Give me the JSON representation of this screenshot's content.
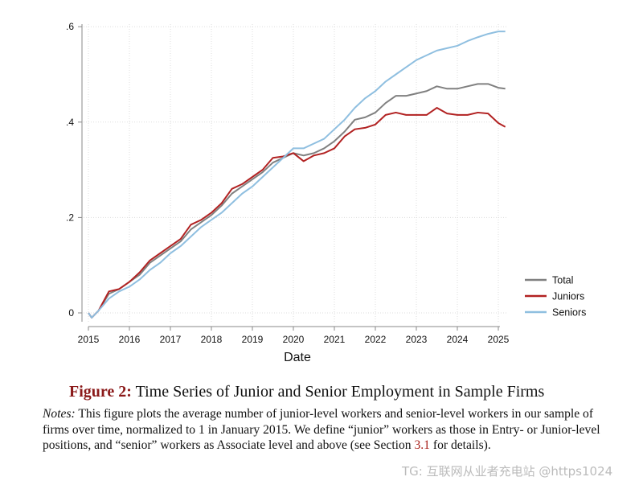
{
  "chart_data": {
    "type": "line",
    "title": "",
    "xlabel": "Date",
    "ylabel": "",
    "xlim": [
      2015,
      2025.25
    ],
    "ylim": [
      -0.03,
      0.6
    ],
    "grid": true,
    "legend_placement": "right",
    "xticks": [
      "2015",
      "2016",
      "2017",
      "2018",
      "2019",
      "2020",
      "2021",
      "2022",
      "2023",
      "2024",
      "2025"
    ],
    "yticks": [
      {
        "value": 0,
        "label": "0"
      },
      {
        "value": 0.2,
        "label": ".2"
      },
      {
        "value": 0.4,
        "label": ".4"
      },
      {
        "value": 0.6,
        "label": ".6"
      }
    ],
    "x": [
      2015,
      2015.08,
      2015.25,
      2015.5,
      2015.75,
      2016,
      2016.25,
      2016.5,
      2016.75,
      2017,
      2017.25,
      2017.5,
      2017.75,
      2018,
      2018.25,
      2018.5,
      2018.75,
      2019,
      2019.25,
      2019.5,
      2019.75,
      2020,
      2020.25,
      2020.5,
      2020.75,
      2021,
      2021.25,
      2021.5,
      2021.75,
      2022,
      2022.25,
      2022.5,
      2022.75,
      2023,
      2023.25,
      2023.5,
      2023.75,
      2024,
      2024.25,
      2024.5,
      2024.75,
      2025,
      2025.17
    ],
    "series": [
      {
        "name": "Total",
        "color": "#808080",
        "values": [
          0,
          -0.01,
          0.005,
          0.04,
          0.05,
          0.065,
          0.08,
          0.105,
          0.12,
          0.135,
          0.15,
          0.175,
          0.19,
          0.205,
          0.225,
          0.25,
          0.265,
          0.28,
          0.295,
          0.315,
          0.325,
          0.335,
          0.33,
          0.335,
          0.345,
          0.36,
          0.38,
          0.405,
          0.41,
          0.42,
          0.44,
          0.455,
          0.455,
          0.46,
          0.465,
          0.475,
          0.47,
          0.47,
          0.475,
          0.48,
          0.48,
          0.472,
          0.47
        ]
      },
      {
        "name": "Juniors",
        "color": "#b22222",
        "values": [
          0,
          -0.01,
          0.005,
          0.045,
          0.05,
          0.065,
          0.085,
          0.11,
          0.125,
          0.14,
          0.155,
          0.185,
          0.195,
          0.21,
          0.23,
          0.26,
          0.27,
          0.285,
          0.3,
          0.325,
          0.328,
          0.335,
          0.318,
          0.33,
          0.335,
          0.345,
          0.37,
          0.385,
          0.388,
          0.395,
          0.415,
          0.42,
          0.415,
          0.415,
          0.415,
          0.43,
          0.418,
          0.415,
          0.415,
          0.42,
          0.418,
          0.398,
          0.39
        ]
      },
      {
        "name": "Seniors",
        "color": "#8fbfe0",
        "values": [
          0,
          -0.01,
          0.005,
          0.03,
          0.045,
          0.055,
          0.07,
          0.09,
          0.105,
          0.125,
          0.14,
          0.16,
          0.18,
          0.195,
          0.21,
          0.23,
          0.25,
          0.265,
          0.285,
          0.305,
          0.325,
          0.345,
          0.345,
          0.355,
          0.365,
          0.385,
          0.405,
          0.43,
          0.45,
          0.465,
          0.485,
          0.5,
          0.515,
          0.53,
          0.54,
          0.55,
          0.555,
          0.56,
          0.57,
          0.578,
          0.585,
          0.59,
          0.59
        ]
      }
    ]
  },
  "caption": {
    "figure_label": "Figure 2:",
    "title": "Time Series of Junior and Senior Employment in Sample Firms",
    "notes_label": "Notes:",
    "notes_text_1": " This figure plots the average number of junior-level workers and senior-level workers in our sample of firms over time, normalized to 1 in January 2015. We define “junior” workers as those in Entry- or Junior-level positions, and “senior” workers as Associate level and above (see Section ",
    "section_ref": "3.1",
    "notes_text_2": " for details)."
  },
  "watermark": "TG: 互联网从业者充电站 @https1024"
}
